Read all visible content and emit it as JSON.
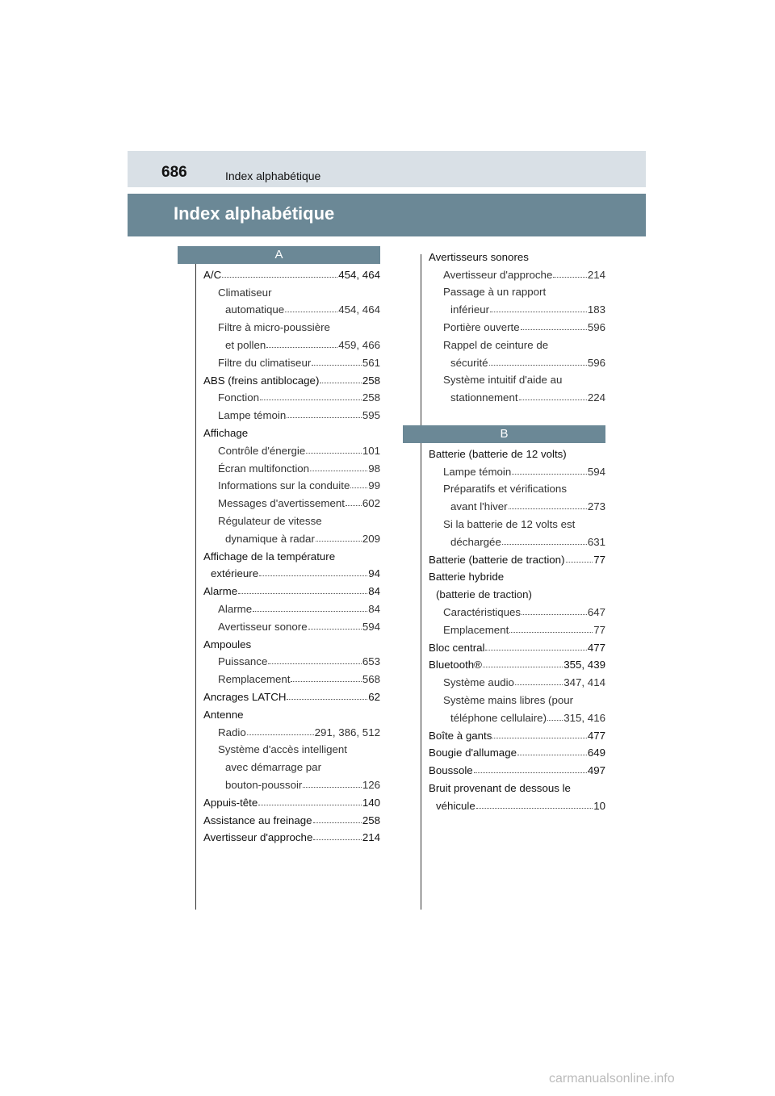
{
  "header": {
    "page_number": "686",
    "running_title": "Index alphabétique"
  },
  "title": "Index alphabétique",
  "left_column": {
    "section_letter": "A",
    "lines": [
      {
        "level": "0",
        "text": "A/C",
        "page": "454, 464"
      },
      {
        "level": "1",
        "text": "Climatiseur"
      },
      {
        "level": "2",
        "text": "automatique",
        "page": "454, 464"
      },
      {
        "level": "1",
        "text": "Filtre à micro-poussière"
      },
      {
        "level": "2",
        "text": "et pollen",
        "page": "459, 466"
      },
      {
        "level": "1",
        "text": "Filtre du climatiseur",
        "page": "561"
      },
      {
        "level": "0",
        "text": "ABS (freins antiblocage)",
        "page": "258"
      },
      {
        "level": "1",
        "text": "Fonction",
        "page": "258"
      },
      {
        "level": "1",
        "text": "Lampe témoin",
        "page": "595"
      },
      {
        "level": "0",
        "text": "Affichage"
      },
      {
        "level": "1",
        "text": "Contrôle d'énergie",
        "page": "101"
      },
      {
        "level": "1",
        "text": "Écran multifonction",
        "page": "98"
      },
      {
        "level": "1",
        "text": "Informations sur la conduite",
        "page": "99"
      },
      {
        "level": "1",
        "text": "Messages d'avertissement",
        "page": "602"
      },
      {
        "level": "1",
        "text": "Régulateur de vitesse"
      },
      {
        "level": "2",
        "text": "dynamique à radar",
        "page": "209"
      },
      {
        "level": "0",
        "text": "Affichage de la température"
      },
      {
        "level": "c",
        "text": "extérieure",
        "page": "94"
      },
      {
        "level": "0",
        "text": "Alarme",
        "page": "84"
      },
      {
        "level": "1",
        "text": "Alarme",
        "page": "84"
      },
      {
        "level": "1",
        "text": "Avertisseur sonore",
        "page": "594"
      },
      {
        "level": "0",
        "text": "Ampoules"
      },
      {
        "level": "1",
        "text": "Puissance",
        "page": "653"
      },
      {
        "level": "1",
        "text": "Remplacement",
        "page": "568"
      },
      {
        "level": "0",
        "text": "Ancrages LATCH",
        "page": "62"
      },
      {
        "level": "0",
        "text": "Antenne"
      },
      {
        "level": "1",
        "text": "Radio",
        "page": "291, 386, 512"
      },
      {
        "level": "1",
        "text": "Système d'accès intelligent"
      },
      {
        "level": "2",
        "text": "avec démarrage par"
      },
      {
        "level": "2",
        "text": "bouton-poussoir",
        "page": "126"
      },
      {
        "level": "0",
        "text": "Appuis-tête",
        "page": "140"
      },
      {
        "level": "0",
        "text": "Assistance au freinage",
        "page": "258"
      },
      {
        "level": "0",
        "text": "Avertisseur d'approche",
        "page": "214"
      }
    ]
  },
  "right_column": {
    "lines_before": [
      {
        "level": "0",
        "text": "Avertisseurs sonores"
      },
      {
        "level": "1",
        "text": "Avertisseur d'approche",
        "page": "214"
      },
      {
        "level": "1",
        "text": "Passage à un rapport"
      },
      {
        "level": "2",
        "text": "inférieur",
        "page": "183"
      },
      {
        "level": "1",
        "text": "Portière ouverte",
        "page": "596"
      },
      {
        "level": "1",
        "text": "Rappel de ceinture de"
      },
      {
        "level": "2",
        "text": "sécurité",
        "page": "596"
      },
      {
        "level": "1",
        "text": "Système intuitif d'aide au"
      },
      {
        "level": "2",
        "text": "stationnement",
        "page": "224"
      }
    ],
    "section_letter": "B",
    "lines": [
      {
        "level": "0",
        "text": "Batterie (batterie de 12 volts)"
      },
      {
        "level": "1",
        "text": "Lampe témoin",
        "page": "594"
      },
      {
        "level": "1",
        "text": "Préparatifs et vérifications"
      },
      {
        "level": "2",
        "text": "avant l'hiver",
        "page": "273"
      },
      {
        "level": "1",
        "text": "Si la batterie de 12 volts est"
      },
      {
        "level": "2",
        "text": "déchargée",
        "page": "631"
      },
      {
        "level": "0",
        "text": "Batterie (batterie de traction)",
        "page": "77"
      },
      {
        "level": "0",
        "text": "Batterie hybride"
      },
      {
        "level": "c",
        "text": "(batterie de traction)"
      },
      {
        "level": "1",
        "text": "Caractéristiques",
        "page": "647"
      },
      {
        "level": "1",
        "text": "Emplacement",
        "page": "77"
      },
      {
        "level": "0",
        "text": "Bloc central",
        "page": "477"
      },
      {
        "level": "0",
        "text": "Bluetooth®",
        "page": "355, 439"
      },
      {
        "level": "1",
        "text": "Système audio",
        "page": "347, 414"
      },
      {
        "level": "1",
        "text": "Système mains libres (pour"
      },
      {
        "level": "2",
        "text": "téléphone cellulaire)",
        "page": "315, 416"
      },
      {
        "level": "0",
        "text": "Boîte à gants",
        "page": "477"
      },
      {
        "level": "0",
        "text": "Bougie d'allumage",
        "page": "649"
      },
      {
        "level": "0",
        "text": "Boussole",
        "page": "497"
      },
      {
        "level": "0",
        "text": "Bruit provenant de dessous le"
      },
      {
        "level": "c",
        "text": "véhicule",
        "page": "10"
      }
    ]
  },
  "watermark": "carmanualsonline.info",
  "colors": {
    "header_band": "#d9e0e6",
    "title_band": "#6b8896",
    "letter_band": "#6b8896"
  }
}
